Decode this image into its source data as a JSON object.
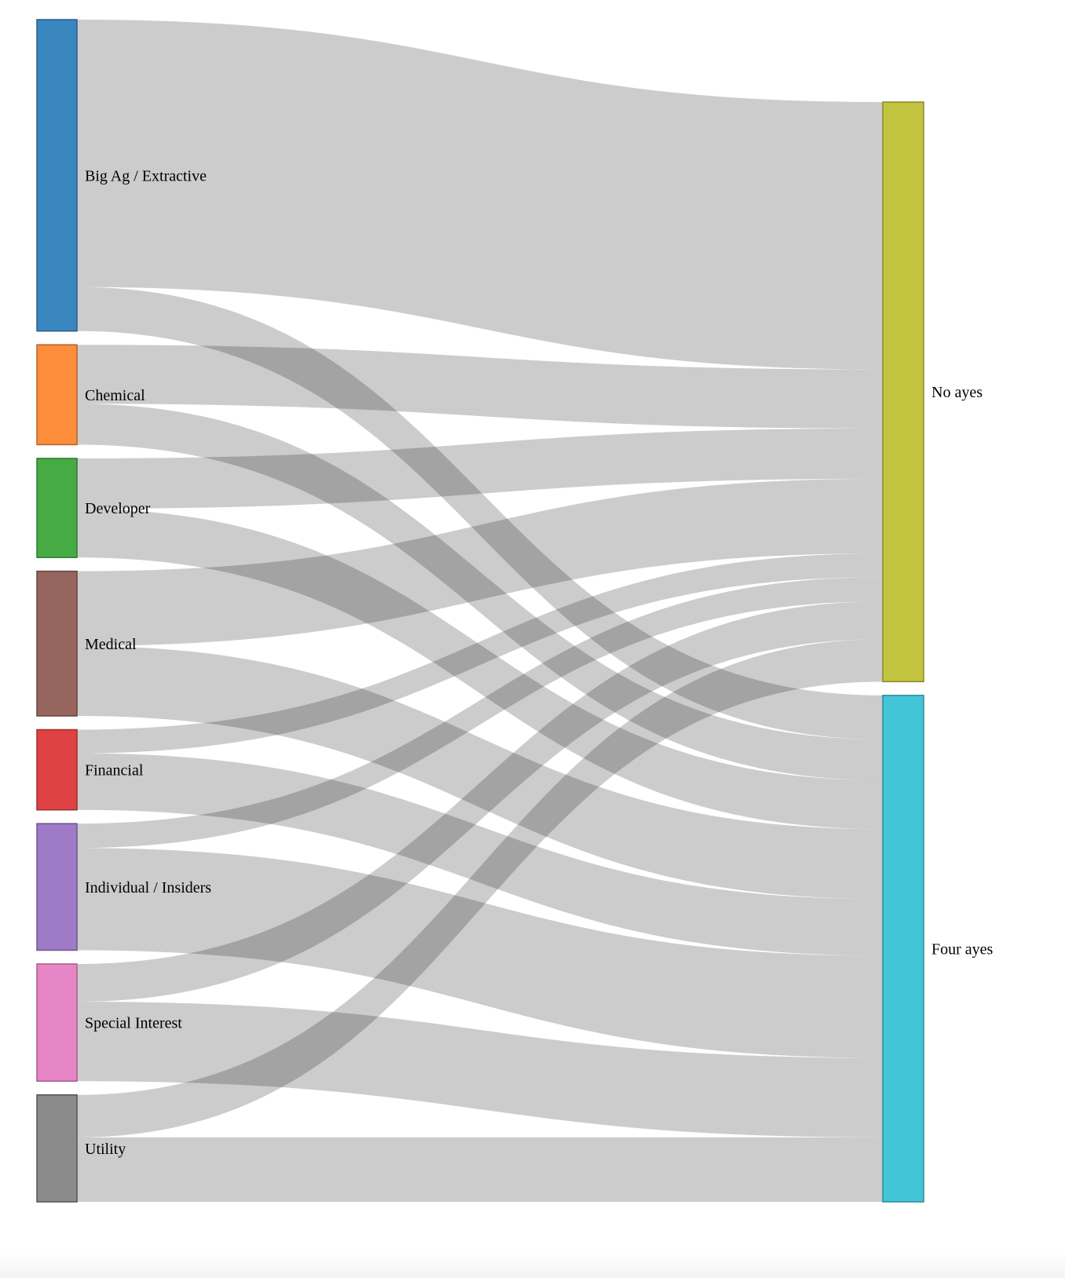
{
  "chart_data": {
    "type": "sankey",
    "title": "",
    "sources": [
      {
        "id": "big-ag",
        "name": "Big Ag / Extractive",
        "color": "#3a87c0",
        "stroke": "#2b5f86"
      },
      {
        "id": "chemical",
        "name": "Chemical",
        "color": "#fd8d3a",
        "stroke": "#b3632a"
      },
      {
        "id": "developer",
        "name": "Developer",
        "color": "#46ab44",
        "stroke": "#2f7a2e"
      },
      {
        "id": "medical",
        "name": "Medical",
        "color": "#96655e",
        "stroke": "#664541"
      },
      {
        "id": "financial",
        "name": "Financial",
        "color": "#df4242",
        "stroke": "#9c2e2e"
      },
      {
        "id": "individual",
        "name": "Individual / Insiders",
        "color": "#9f7ac6",
        "stroke": "#6f558a"
      },
      {
        "id": "special-interest",
        "name": "Special Interest",
        "color": "#e786c7",
        "stroke": "#a35e8b"
      },
      {
        "id": "utility",
        "name": "Utility",
        "color": "#8b8b8b",
        "stroke": "#555555"
      }
    ],
    "targets": [
      {
        "id": "no-ayes",
        "name": "No ayes",
        "color": "#c2c43f",
        "stroke": "#87882c"
      },
      {
        "id": "four-ayes",
        "name": "Four ayes",
        "color": "#42c5d6",
        "stroke": "#2e8a96"
      }
    ],
    "links": [
      {
        "source": "big-ag",
        "target": "no-ayes",
        "value": 340
      },
      {
        "source": "big-ag",
        "target": "four-ayes",
        "value": 56
      },
      {
        "source": "chemical",
        "target": "no-ayes",
        "value": 75
      },
      {
        "source": "chemical",
        "target": "four-ayes",
        "value": 52
      },
      {
        "source": "developer",
        "target": "no-ayes",
        "value": 64
      },
      {
        "source": "developer",
        "target": "four-ayes",
        "value": 62
      },
      {
        "source": "medical",
        "target": "no-ayes",
        "value": 95
      },
      {
        "source": "medical",
        "target": "four-ayes",
        "value": 89
      },
      {
        "source": "financial",
        "target": "no-ayes",
        "value": 30
      },
      {
        "source": "financial",
        "target": "four-ayes",
        "value": 72
      },
      {
        "source": "individual",
        "target": "no-ayes",
        "value": 31
      },
      {
        "source": "individual",
        "target": "four-ayes",
        "value": 130
      },
      {
        "source": "special-interest",
        "target": "no-ayes",
        "value": 48
      },
      {
        "source": "special-interest",
        "target": "four-ayes",
        "value": 101
      },
      {
        "source": "utility",
        "target": "no-ayes",
        "value": 54
      },
      {
        "source": "utility",
        "target": "four-ayes",
        "value": 82
      }
    ],
    "link_color": "#000000",
    "link_opacity": 0.2
  }
}
